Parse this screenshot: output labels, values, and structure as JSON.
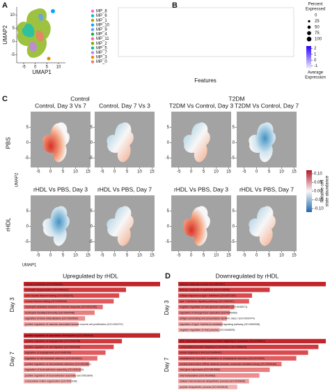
{
  "panel_a": {
    "label": "A",
    "x_label": "UMAP1",
    "y_label": "UMAP2",
    "xlim": [
      -8,
      13
    ],
    "ylim": [
      -8,
      13
    ],
    "xticks": [
      -5,
      0,
      5,
      10
    ],
    "yticks": [
      -5,
      0,
      5,
      10
    ],
    "clusters": [
      {
        "name": "MP_8",
        "color": "#f564e3"
      },
      {
        "name": "MP_6",
        "color": "#00bfc4"
      },
      {
        "name": "MP_1",
        "color": "#b79f00"
      },
      {
        "name": "MP_10",
        "color": "#00a9ff"
      },
      {
        "name": "MP_9",
        "color": "#619cff"
      },
      {
        "name": "MP_4",
        "color": "#00ba38"
      },
      {
        "name": "MP_11",
        "color": "#ff64b0"
      },
      {
        "name": "MP_2",
        "color": "#7cae00"
      },
      {
        "name": "MP_5",
        "color": "#00c08b"
      },
      {
        "name": "MP_7",
        "color": "#c77cff"
      },
      {
        "name": "MP_3",
        "color": "#de8c00"
      },
      {
        "name": "MP_0",
        "color": "#f8766d"
      }
    ]
  },
  "panel_b": {
    "label": "B",
    "x_label": "Features",
    "size_legend_title": [
      "Percent",
      "Expressed"
    ],
    "size_legend": [
      0,
      25,
      50,
      75,
      100
    ],
    "color_legend_title": [
      "Average",
      "Expression"
    ],
    "color_lim": [
      -1.4,
      2.4
    ],
    "color_ticks": [
      2,
      1,
      0,
      -1
    ]
  },
  "panel_c": {
    "label": "C",
    "x_label": "UMAP1",
    "y_label": "UMAP2",
    "group_titles": [
      "Control",
      "T2DM"
    ],
    "row_labels": [
      "PBS",
      "rHDL"
    ],
    "plot_titles": [
      [
        "Control, Day 3 Vs 7",
        "Control, Day 7 Vs 3",
        "T2DM Vs Control, Day 3",
        "T2DM Vs Control, Day 7"
      ],
      [
        "rHDL Vs PBS, Day 3",
        "rHDL Vs PBS, Day 7",
        "rHDL Vs PBS, Day 3",
        "rHDL Vs PBS, Day 7"
      ]
    ],
    "xlim": [
      -8,
      16
    ],
    "ylim": [
      -8,
      10
    ],
    "xticks": [
      -5,
      0,
      5,
      10,
      15
    ],
    "yticks": [
      -5,
      0,
      5
    ],
    "color_label": [
      "Relative cell",
      "state abundance"
    ],
    "color_lim": [
      -0.12,
      0.12
    ],
    "color_ticks": [
      {
        "value": 0.1,
        "label": "0.10"
      },
      0.05,
      {
        "value": 0,
        "label": "0.00"
      },
      -0.05,
      {
        "value": -0.1,
        "label": "-0.10"
      }
    ]
  },
  "panel_d": {
    "label": "D",
    "xlim": [
      0,
      100
    ],
    "sides": [
      {
        "title": "Upregulated by rHDL",
        "groups": [
          {
            "label": "Day 3",
            "terms": [
              "muscle contraction (GO:0006936)",
              "neutrophil degranulation (GO:0043312)",
              "actin-myosin filament sliding (GO:0033275)",
              "muscle filament sliding (GO:0030049)",
              "neutrophil activation involved in immune response (GO:0002283)",
              "neutrophil mediated immunity (GO:0002446)",
              "regulation of bone mineralization (GO:0030500)",
              "positive regulation of vascular associated smooth muscle cell proliferation (GO:1904707)"
            ],
            "values": [
              100,
              75,
              70,
              66,
              58,
              52,
              45,
              40
            ]
          },
          {
            "label": "Day 7",
            "terms": [
              "positive regulation of vasculature development (GO:1904018)",
              "positive regulation of angiogenesis (GO:0045766)",
              "positive regulation of cell migration (GO:0030335)",
              "regulation of angiogenesis (GO:0045765)",
              "regulation of cell-substrate adhesion (GO:0010810)",
              "positive regulation of cell-substrate adhesion (GO:0010811)",
              "regulation of focal adhesion assembly (GO:0051893)",
              "positive regulation of focal adhesion assembly (GO:0051894)",
              "extracellular matrix organization (GO:0030198)"
            ],
            "values": [
              100,
              72,
              66,
              60,
              54,
              48,
              42,
              38,
              35
            ]
          }
        ]
      },
      {
        "title": "Downregulated by rHDL",
        "groups": [
          {
            "label": "Day 3",
            "terms": [
              "defense response to virus (GO:0051607)",
              "defense response to symbiont (GO:0140546)",
              "cellular response to type I interferon (GO:0071357)",
              "type I interferon signaling pathway (GO:0060337)",
              "negative regulation of viral genome replication (GO:0045071)",
              "regulation of viral genome replication (GO:0045069)",
              "antigen processing and presentation via MHC class I (GO:0002474)",
              "regulation of type I interferon-mediated signaling pathway (GO:0060338)",
              "negative regulation of viral process (GO:0048525)"
            ],
            "values": [
              100,
              62,
              50,
              48,
              38,
              35,
              33,
              30,
              28
            ]
          },
          {
            "label": "Day 7",
            "terms": [
              "SRP-dependent cotranslational protein targeting to membrane (GO:0006614)",
              "cotranslational protein targeting to membrane (GO:0006613)",
              "protein targeting to ER (GO:0045047)",
              "establishment of protein localization to endoplasmic reticulum (GO:0072599)",
              "nuclear-transcribed mRNA catabolic process, nonsense-mediated decay (GO:0000184)",
              "viral gene expression (GO:0019080)",
              "viral transcription (GO:0019083)",
              "cellular macromolecule biosynthetic process (GO:0034645)",
              "peptide biosynthetic process (GO:0043043)"
            ],
            "values": [
              100,
              95,
              88,
              80,
              70,
              62,
              55,
              48,
              40
            ]
          }
        ]
      }
    ]
  }
}
